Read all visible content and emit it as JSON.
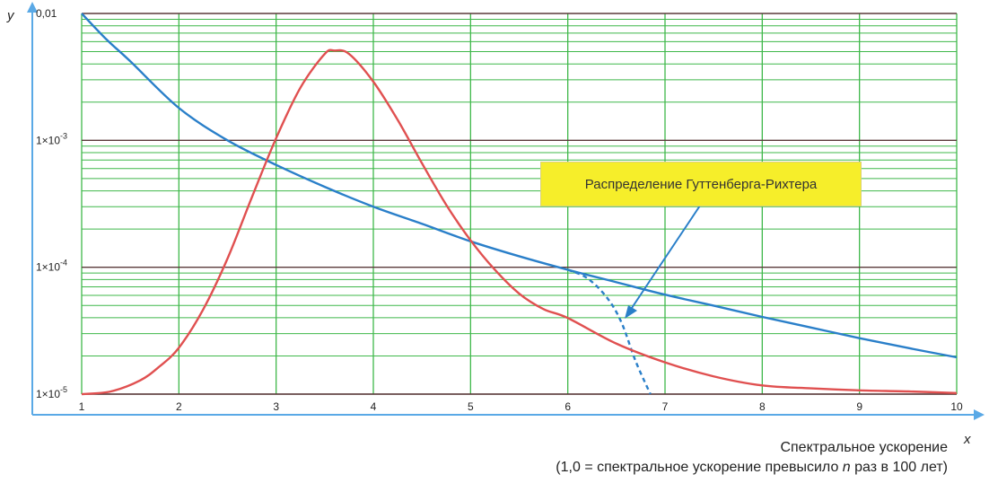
{
  "chart_data": {
    "type": "line",
    "y_scale": "log",
    "xlim": [
      1,
      10
    ],
    "ylim": [
      1e-05,
      0.01
    ],
    "x_ticks": [
      "1",
      "2",
      "3",
      "4",
      "5",
      "6",
      "7",
      "8",
      "9",
      "10"
    ],
    "y_ticks": [
      {
        "value": 0.01,
        "label": "0,01"
      },
      {
        "value": 0.001,
        "base": "1×10",
        "exp": "-3"
      },
      {
        "value": 0.0001,
        "base": "1×10",
        "exp": "-4"
      },
      {
        "value": 1e-05,
        "base": "1×10",
        "exp": "-5"
      }
    ],
    "x_axis_letter": "x",
    "y_axis_letter": "y",
    "xlabel_line1": "Спектральное ускорение",
    "xlabel_line2_pre": "(1,0 = спектральное ускорение превысило ",
    "xlabel_line2_n": "n",
    "xlabel_line2_post": " раз в 100 лет)",
    "annotation": "Распределение Гуттенберга-Рихтера",
    "grid": true,
    "series": [
      {
        "color": "#2a7fc9",
        "style": "solid",
        "x": [
          1,
          1.25,
          1.5,
          2,
          2.5,
          3,
          3.5,
          4,
          4.5,
          5,
          5.5,
          6,
          6.5,
          7,
          7.5,
          8,
          8.5,
          9,
          9.5,
          10
        ],
        "y": [
          0.01,
          0.0063,
          0.0042,
          0.0018,
          0.001,
          0.00064,
          0.00043,
          0.0003,
          0.00022,
          0.00016,
          0.000122,
          9.55e-05,
          7.62e-05,
          6.08e-05,
          4.98e-05,
          4.06e-05,
          3.35e-05,
          2.76e-05,
          2.31e-05,
          1.95e-05
        ]
      },
      {
        "color": "#2a7fc9",
        "style": "dashed",
        "x": [
          6,
          6.2,
          6.4,
          6.55,
          6.7,
          6.85
        ],
        "y": [
          9.55e-05,
          8.2e-05,
          5.8e-05,
          3.7e-05,
          1.8e-05,
          1e-05
        ]
      },
      {
        "color": "#e05050",
        "style": "solid",
        "x": [
          1,
          1.3,
          1.6,
          1.8,
          2,
          2.25,
          2.5,
          2.75,
          3,
          3.25,
          3.5,
          3.6,
          3.75,
          4,
          4.25,
          4.5,
          4.75,
          5,
          5.25,
          5.5,
          5.75,
          6,
          6.5,
          7,
          7.5,
          8,
          8.5,
          9,
          9.5,
          10
        ],
        "y": [
          1e-05,
          1.05e-05,
          1.28e-05,
          1.65e-05,
          2.32e-05,
          4.65e-05,
          0.000117,
          0.000355,
          0.00104,
          0.0026,
          0.0048,
          0.0051,
          0.0048,
          0.0029,
          0.00145,
          0.00066,
          0.00031,
          0.000163,
          9.55e-05,
          6.2e-05,
          4.68e-05,
          3.98e-05,
          2.5e-05,
          1.78e-05,
          1.38e-05,
          1.17e-05,
          1.11e-05,
          1.07e-05,
          1.05e-05,
          1.02e-05
        ]
      }
    ]
  }
}
